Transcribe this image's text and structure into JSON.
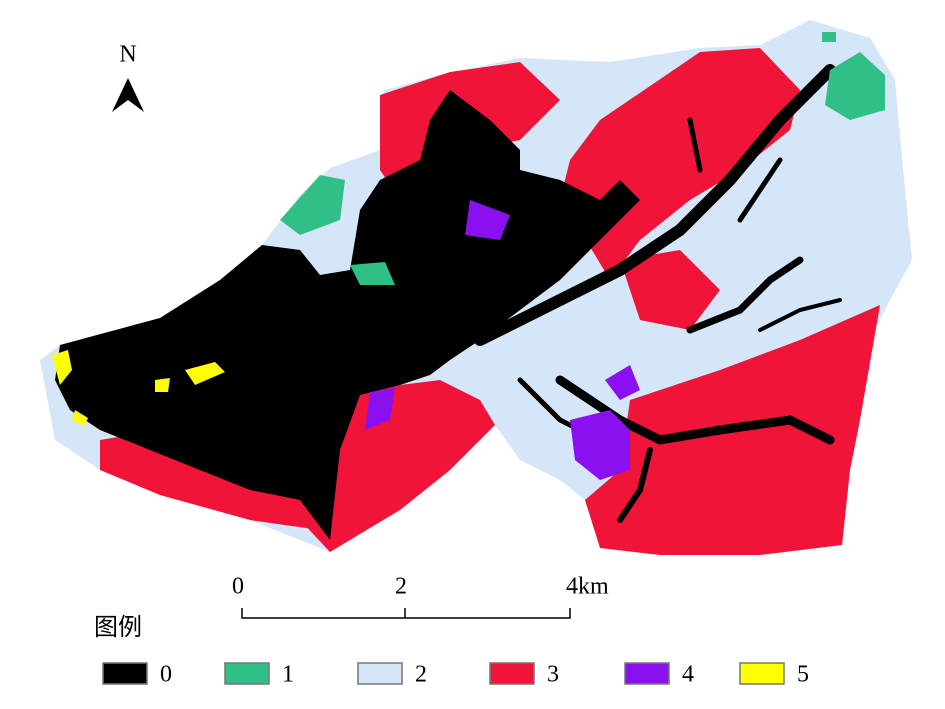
{
  "north_arrow": {
    "label": "N"
  },
  "scale_bar": {
    "labels": [
      "0",
      "2",
      "4km"
    ]
  },
  "legend": {
    "title": "图例",
    "items": [
      {
        "label": "0",
        "color": "#000000"
      },
      {
        "label": "1",
        "color": "#2fbf87"
      },
      {
        "label": "2",
        "color": "#d4e6f7"
      },
      {
        "label": "3",
        "color": "#f01438"
      },
      {
        "label": "4",
        "color": "#8a10f0"
      },
      {
        "label": "5",
        "color": "#ffff00"
      }
    ]
  }
}
